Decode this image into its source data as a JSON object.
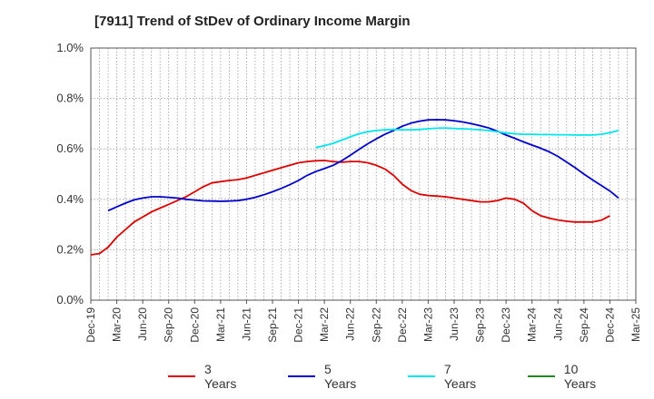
{
  "chart_data": {
    "type": "line",
    "title": "[7911]  Trend of StDev of Ordinary Income Margin",
    "xlabel": "",
    "ylabel": "",
    "ylim": [
      0,
      1.0
    ],
    "yticks": [
      "0.0%",
      "0.2%",
      "0.4%",
      "0.6%",
      "0.8%",
      "1.0%"
    ],
    "yticks_values": [
      0,
      0.2,
      0.4,
      0.6,
      0.8,
      1.0
    ],
    "xticks": [
      "Dec-19",
      "Mar-20",
      "Jun-20",
      "Sep-20",
      "Dec-20",
      "Mar-21",
      "Jun-21",
      "Sep-21",
      "Dec-21",
      "Mar-22",
      "Jun-22",
      "Sep-22",
      "Dec-22",
      "Mar-23",
      "Jun-23",
      "Sep-23",
      "Dec-23",
      "Mar-24",
      "Jun-24",
      "Sep-24",
      "Dec-24",
      "Mar-25"
    ],
    "grid": true,
    "legend_position": "bottom",
    "series": [
      {
        "name": "3 Years",
        "color": "#dd0000",
        "points": [
          [
            "Dec-19",
            0.18
          ],
          [
            "Jan-20",
            0.185
          ],
          [
            "Feb-20",
            0.21
          ],
          [
            "Mar-20",
            0.25
          ],
          [
            "Apr-20",
            0.28
          ],
          [
            "May-20",
            0.31
          ],
          [
            "Jun-20",
            0.33
          ],
          [
            "Jul-20",
            0.35
          ],
          [
            "Aug-20",
            0.365
          ],
          [
            "Sep-20",
            0.38
          ],
          [
            "Oct-20",
            0.395
          ],
          [
            "Nov-20",
            0.41
          ],
          [
            "Dec-20",
            0.43
          ],
          [
            "Jan-21",
            0.45
          ],
          [
            "Feb-21",
            0.465
          ],
          [
            "Mar-21",
            0.47
          ],
          [
            "Apr-21",
            0.475
          ],
          [
            "May-21",
            0.478
          ],
          [
            "Jun-21",
            0.485
          ],
          [
            "Jul-21",
            0.495
          ],
          [
            "Aug-21",
            0.505
          ],
          [
            "Sep-21",
            0.515
          ],
          [
            "Oct-21",
            0.525
          ],
          [
            "Nov-21",
            0.535
          ],
          [
            "Dec-21",
            0.545
          ],
          [
            "Jan-22",
            0.55
          ],
          [
            "Feb-22",
            0.553
          ],
          [
            "Mar-22",
            0.554
          ],
          [
            "Apr-22",
            0.55
          ],
          [
            "May-22",
            0.547
          ],
          [
            "Jun-22",
            0.55
          ],
          [
            "Jul-22",
            0.55
          ],
          [
            "Aug-22",
            0.545
          ],
          [
            "Sep-22",
            0.535
          ],
          [
            "Oct-22",
            0.52
          ],
          [
            "Nov-22",
            0.495
          ],
          [
            "Dec-22",
            0.46
          ],
          [
            "Jan-23",
            0.435
          ],
          [
            "Feb-23",
            0.42
          ],
          [
            "Mar-23",
            0.415
          ],
          [
            "Apr-23",
            0.413
          ],
          [
            "May-23",
            0.41
          ],
          [
            "Jun-23",
            0.405
          ],
          [
            "Jul-23",
            0.4
          ],
          [
            "Aug-23",
            0.395
          ],
          [
            "Sep-23",
            0.39
          ],
          [
            "Oct-23",
            0.39
          ],
          [
            "Nov-23",
            0.395
          ],
          [
            "Dec-23",
            0.405
          ],
          [
            "Jan-24",
            0.4
          ],
          [
            "Feb-24",
            0.385
          ],
          [
            "Mar-24",
            0.355
          ],
          [
            "Apr-24",
            0.335
          ],
          [
            "May-24",
            0.325
          ],
          [
            "Jun-24",
            0.318
          ],
          [
            "Jul-24",
            0.313
          ],
          [
            "Aug-24",
            0.31
          ],
          [
            "Sep-24",
            0.31
          ],
          [
            "Oct-24",
            0.31
          ],
          [
            "Nov-24",
            0.317
          ],
          [
            "Dec-24",
            0.335
          ]
        ]
      },
      {
        "name": "5 Years",
        "color": "#0000cc",
        "points": [
          [
            "Feb-20",
            0.355
          ],
          [
            "Mar-20",
            0.37
          ],
          [
            "Apr-20",
            0.385
          ],
          [
            "May-20",
            0.398
          ],
          [
            "Jun-20",
            0.405
          ],
          [
            "Jul-20",
            0.41
          ],
          [
            "Aug-20",
            0.41
          ],
          [
            "Sep-20",
            0.408
          ],
          [
            "Oct-20",
            0.405
          ],
          [
            "Nov-20",
            0.4
          ],
          [
            "Dec-20",
            0.397
          ],
          [
            "Jan-21",
            0.394
          ],
          [
            "Feb-21",
            0.393
          ],
          [
            "Mar-21",
            0.392
          ],
          [
            "Apr-21",
            0.393
          ],
          [
            "May-21",
            0.395
          ],
          [
            "Jun-21",
            0.4
          ],
          [
            "Jul-21",
            0.408
          ],
          [
            "Aug-21",
            0.418
          ],
          [
            "Sep-21",
            0.43
          ],
          [
            "Oct-21",
            0.443
          ],
          [
            "Nov-21",
            0.458
          ],
          [
            "Dec-21",
            0.475
          ],
          [
            "Jan-22",
            0.495
          ],
          [
            "Feb-22",
            0.51
          ],
          [
            "Mar-22",
            0.522
          ],
          [
            "Apr-22",
            0.535
          ],
          [
            "May-22",
            0.553
          ],
          [
            "Jun-22",
            0.575
          ],
          [
            "Jul-22",
            0.598
          ],
          [
            "Aug-22",
            0.62
          ],
          [
            "Sep-22",
            0.64
          ],
          [
            "Oct-22",
            0.658
          ],
          [
            "Nov-22",
            0.673
          ],
          [
            "Dec-22",
            0.69
          ],
          [
            "Jan-23",
            0.702
          ],
          [
            "Feb-23",
            0.71
          ],
          [
            "Mar-23",
            0.715
          ],
          [
            "Apr-23",
            0.716
          ],
          [
            "May-23",
            0.715
          ],
          [
            "Jun-23",
            0.712
          ],
          [
            "Jul-23",
            0.707
          ],
          [
            "Aug-23",
            0.7
          ],
          [
            "Sep-23",
            0.692
          ],
          [
            "Oct-23",
            0.683
          ],
          [
            "Nov-23",
            0.67
          ],
          [
            "Dec-23",
            0.655
          ],
          [
            "Jan-24",
            0.642
          ],
          [
            "Feb-24",
            0.628
          ],
          [
            "Mar-24",
            0.615
          ],
          [
            "Apr-24",
            0.603
          ],
          [
            "May-24",
            0.588
          ],
          [
            "Jun-24",
            0.57
          ],
          [
            "Jul-24",
            0.548
          ],
          [
            "Aug-24",
            0.525
          ],
          [
            "Sep-24",
            0.5
          ],
          [
            "Oct-24",
            0.477
          ],
          [
            "Nov-24",
            0.455
          ],
          [
            "Dec-24",
            0.433
          ],
          [
            "Jan-25",
            0.405
          ]
        ]
      },
      {
        "name": "7 Years",
        "color": "#00e5ee",
        "points": [
          [
            "Feb-22",
            0.605
          ],
          [
            "Mar-22",
            0.613
          ],
          [
            "Apr-22",
            0.622
          ],
          [
            "May-22",
            0.635
          ],
          [
            "Jun-22",
            0.648
          ],
          [
            "Jul-22",
            0.66
          ],
          [
            "Aug-22",
            0.668
          ],
          [
            "Sep-22",
            0.673
          ],
          [
            "Oct-22",
            0.676
          ],
          [
            "Nov-22",
            0.677
          ],
          [
            "Dec-22",
            0.676
          ],
          [
            "Jan-23",
            0.676
          ],
          [
            "Feb-23",
            0.677
          ],
          [
            "Mar-23",
            0.68
          ],
          [
            "Apr-23",
            0.682
          ],
          [
            "May-23",
            0.683
          ],
          [
            "Jun-23",
            0.681
          ],
          [
            "Jul-23",
            0.68
          ],
          [
            "Aug-23",
            0.678
          ],
          [
            "Sep-23",
            0.676
          ],
          [
            "Oct-23",
            0.673
          ],
          [
            "Nov-23",
            0.668
          ],
          [
            "Dec-23",
            0.663
          ],
          [
            "Jan-24",
            0.66
          ],
          [
            "Feb-24",
            0.658
          ],
          [
            "Mar-24",
            0.658
          ],
          [
            "Apr-24",
            0.657
          ],
          [
            "May-24",
            0.657
          ],
          [
            "Jun-24",
            0.656
          ],
          [
            "Jul-24",
            0.656
          ],
          [
            "Aug-24",
            0.655
          ],
          [
            "Sep-24",
            0.655
          ],
          [
            "Oct-24",
            0.655
          ],
          [
            "Nov-24",
            0.658
          ],
          [
            "Dec-24",
            0.664
          ],
          [
            "Jan-25",
            0.673
          ]
        ]
      },
      {
        "name": "10 Years",
        "color": "#228822",
        "points": []
      }
    ]
  },
  "colors": {
    "axis": "#555555",
    "grid": "#999999",
    "text": "#333333"
  }
}
